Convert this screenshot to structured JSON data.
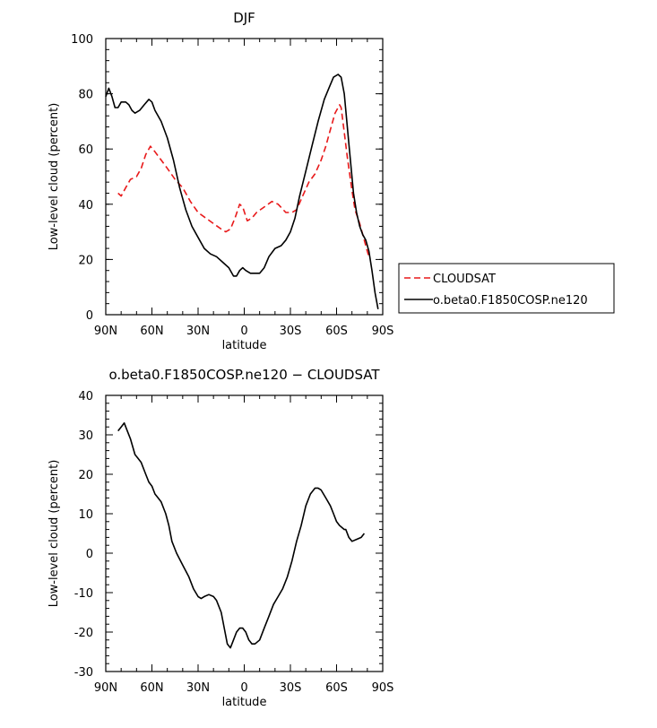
{
  "chart_data": [
    {
      "type": "line",
      "title": "DJF",
      "xlabel": "latitude",
      "ylabel": "Low-level cloud (percent)",
      "xlim": [
        90,
        -90
      ],
      "ylim": [
        0,
        100
      ],
      "x_ticks": [
        90,
        60,
        30,
        0,
        -30,
        -60,
        -90
      ],
      "x_tick_labels": [
        "90N",
        "60N",
        "30N",
        "0",
        "30S",
        "60S",
        "90S"
      ],
      "y_ticks": [
        0,
        20,
        40,
        60,
        80,
        100
      ],
      "legend_position": "right",
      "series": [
        {
          "name": "CLOUDSAT",
          "color": "#e8191a",
          "dash": "dashed",
          "points": [
            [
              82,
              44
            ],
            [
              80,
              43
            ],
            [
              77,
              46
            ],
            [
              74,
              49
            ],
            [
              70,
              50
            ],
            [
              67,
              53
            ],
            [
              64,
              58
            ],
            [
              61,
              61
            ],
            [
              58,
              59
            ],
            [
              54,
              56
            ],
            [
              50,
              53
            ],
            [
              45,
              49
            ],
            [
              40,
              46
            ],
            [
              35,
              41
            ],
            [
              30,
              37
            ],
            [
              25,
              35
            ],
            [
              20,
              33
            ],
            [
              15,
              31
            ],
            [
              12,
              30
            ],
            [
              9,
              31
            ],
            [
              6,
              35
            ],
            [
              3,
              40
            ],
            [
              1,
              39
            ],
            [
              -2,
              34
            ],
            [
              -5,
              35
            ],
            [
              -8,
              37
            ],
            [
              -13,
              39
            ],
            [
              -18,
              41
            ],
            [
              -22,
              40
            ],
            [
              -27,
              37
            ],
            [
              -31,
              37
            ],
            [
              -34,
              38
            ],
            [
              -38,
              43
            ],
            [
              -42,
              48
            ],
            [
              -46,
              51
            ],
            [
              -50,
              56
            ],
            [
              -53,
              61
            ],
            [
              -56,
              67
            ],
            [
              -59,
              73
            ],
            [
              -62,
              76
            ],
            [
              -63,
              75
            ],
            [
              -65,
              66
            ],
            [
              -67,
              57
            ],
            [
              -70,
              45
            ],
            [
              -72,
              38
            ],
            [
              -75,
              33
            ],
            [
              -78,
              27
            ],
            [
              -80,
              23
            ],
            [
              -81,
              21
            ]
          ]
        },
        {
          "name": "o.beta0.F1850COSP.ne120",
          "color": "#000000",
          "dash": "solid",
          "points": [
            [
              90,
              79
            ],
            [
              88,
              82
            ],
            [
              86,
              79
            ],
            [
              84,
              75
            ],
            [
              82,
              75
            ],
            [
              80,
              77
            ],
            [
              77,
              77
            ],
            [
              75,
              76
            ],
            [
              73,
              74
            ],
            [
              71,
              73
            ],
            [
              68,
              74
            ],
            [
              65,
              76
            ],
            [
              62,
              78
            ],
            [
              60,
              77
            ],
            [
              58,
              74
            ],
            [
              54,
              70
            ],
            [
              50,
              64
            ],
            [
              46,
              56
            ],
            [
              42,
              46
            ],
            [
              38,
              38
            ],
            [
              34,
              32
            ],
            [
              30,
              28
            ],
            [
              26,
              24
            ],
            [
              22,
              22
            ],
            [
              18,
              21
            ],
            [
              14,
              19
            ],
            [
              10,
              17
            ],
            [
              7,
              14
            ],
            [
              5,
              14
            ],
            [
              3,
              16
            ],
            [
              1,
              17
            ],
            [
              -1,
              16
            ],
            [
              -4,
              15
            ],
            [
              -7,
              15
            ],
            [
              -10,
              15
            ],
            [
              -13,
              17
            ],
            [
              -16,
              21
            ],
            [
              -20,
              24
            ],
            [
              -24,
              25
            ],
            [
              -27,
              27
            ],
            [
              -30,
              30
            ],
            [
              -33,
              35
            ],
            [
              -36,
              43
            ],
            [
              -40,
              52
            ],
            [
              -44,
              61
            ],
            [
              -48,
              70
            ],
            [
              -52,
              78
            ],
            [
              -55,
              82
            ],
            [
              -58,
              86
            ],
            [
              -61,
              87
            ],
            [
              -63,
              86
            ],
            [
              -65,
              80
            ],
            [
              -68,
              62
            ],
            [
              -71,
              44
            ],
            [
              -73,
              37
            ],
            [
              -75,
              32
            ],
            [
              -77,
              29
            ],
            [
              -79,
              27
            ],
            [
              -81,
              23
            ],
            [
              -83,
              16
            ],
            [
              -85,
              8
            ],
            [
              -87,
              2
            ]
          ]
        }
      ]
    },
    {
      "type": "line",
      "title": "o.beta0.F1850COSP.ne120 − CLOUDSAT",
      "xlabel": "latitude",
      "ylabel": "Low-level cloud (percent)",
      "xlim": [
        90,
        -90
      ],
      "ylim": [
        -30,
        40
      ],
      "x_ticks": [
        90,
        60,
        30,
        0,
        -30,
        -60,
        -90
      ],
      "x_tick_labels": [
        "90N",
        "60N",
        "30N",
        "0",
        "30S",
        "60S",
        "90S"
      ],
      "y_ticks": [
        -30,
        -20,
        -10,
        0,
        10,
        20,
        30,
        40
      ],
      "series": [
        {
          "name": "",
          "color": "#000000",
          "dash": "solid",
          "points": [
            [
              82,
              31
            ],
            [
              80,
              32
            ],
            [
              78,
              33
            ],
            [
              76,
              31
            ],
            [
              74,
              29
            ],
            [
              71,
              25
            ],
            [
              69,
              24
            ],
            [
              67,
              23
            ],
            [
              64,
              20
            ],
            [
              62,
              18
            ],
            [
              60,
              17
            ],
            [
              58,
              15
            ],
            [
              56,
              14
            ],
            [
              54,
              13
            ],
            [
              51,
              10
            ],
            [
              49,
              7
            ],
            [
              47,
              3
            ],
            [
              44,
              0
            ],
            [
              40,
              -3
            ],
            [
              36,
              -6
            ],
            [
              33,
              -9
            ],
            [
              30,
              -11
            ],
            [
              28,
              -11.5
            ],
            [
              26,
              -11
            ],
            [
              23,
              -10.5
            ],
            [
              20,
              -11
            ],
            [
              18,
              -12
            ],
            [
              15,
              -15
            ],
            [
              13,
              -19
            ],
            [
              11,
              -23
            ],
            [
              9,
              -24
            ],
            [
              7,
              -22
            ],
            [
              5,
              -20
            ],
            [
              3,
              -19
            ],
            [
              1,
              -19
            ],
            [
              -1,
              -20
            ],
            [
              -3,
              -22
            ],
            [
              -5,
              -23
            ],
            [
              -7,
              -23
            ],
            [
              -10,
              -22
            ],
            [
              -13,
              -19
            ],
            [
              -16,
              -16
            ],
            [
              -19,
              -13
            ],
            [
              -22,
              -11
            ],
            [
              -25,
              -9
            ],
            [
              -28,
              -6
            ],
            [
              -31,
              -2
            ],
            [
              -34,
              3
            ],
            [
              -37,
              7
            ],
            [
              -40,
              12
            ],
            [
              -43,
              15
            ],
            [
              -46,
              16.5
            ],
            [
              -48,
              16.5
            ],
            [
              -50,
              16
            ],
            [
              -53,
              14
            ],
            [
              -56,
              12
            ],
            [
              -58,
              10
            ],
            [
              -60,
              8
            ],
            [
              -62,
              7
            ],
            [
              -65,
              6
            ],
            [
              -66,
              6
            ],
            [
              -68,
              4
            ],
            [
              -70,
              3
            ],
            [
              -73,
              3.5
            ],
            [
              -76,
              4
            ],
            [
              -78,
              5
            ]
          ]
        }
      ]
    }
  ]
}
